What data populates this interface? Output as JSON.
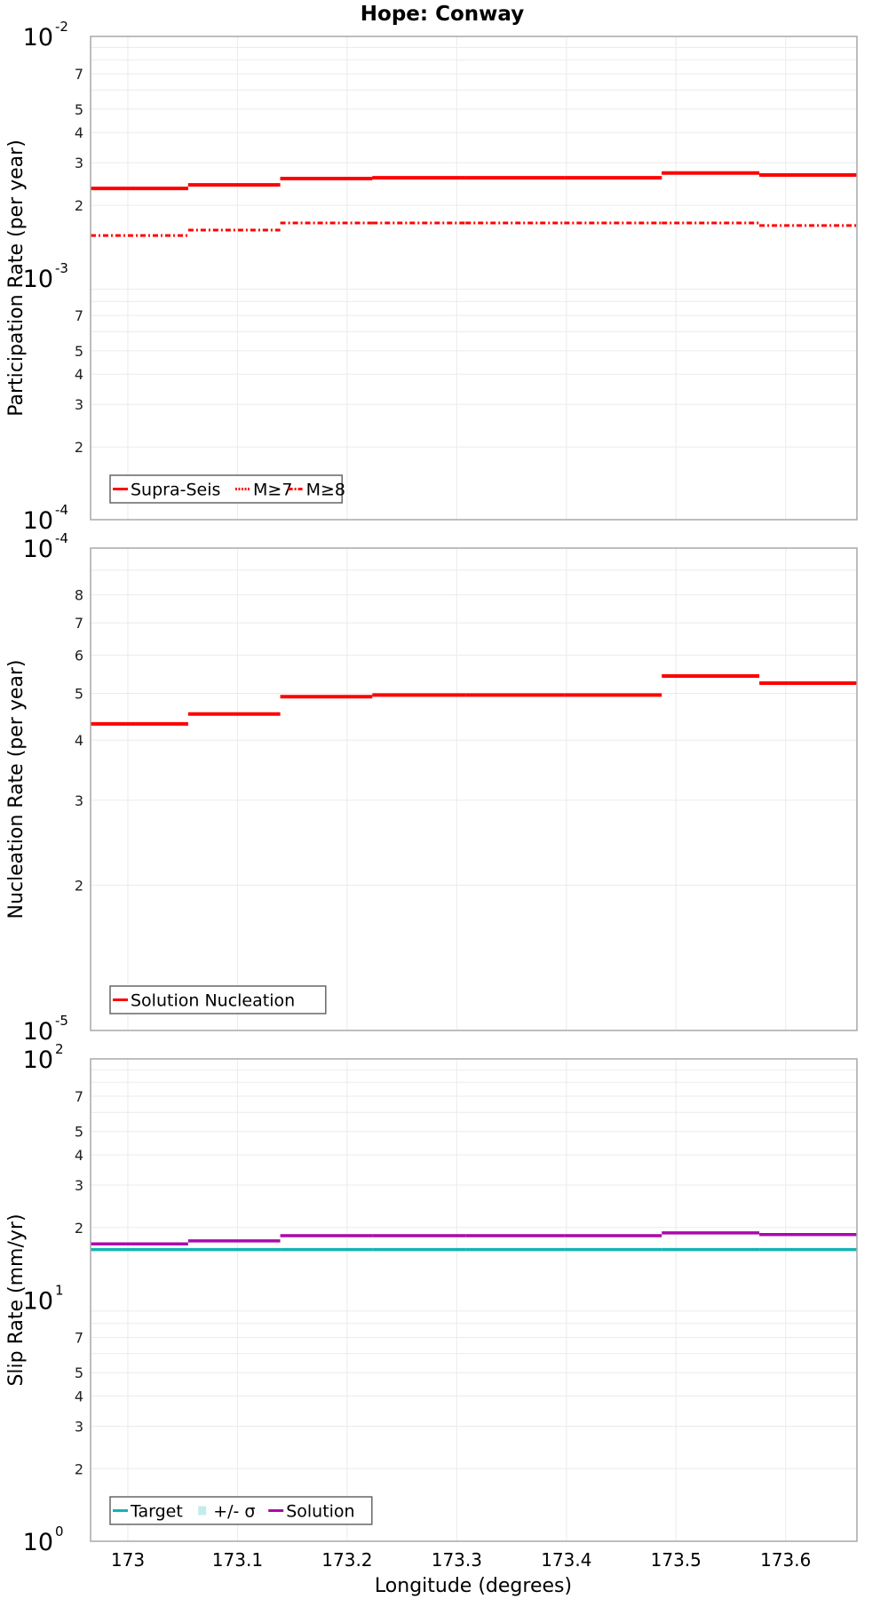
{
  "title": "Hope: Conway",
  "x_axis": {
    "label": "Longitude (degrees)",
    "range": [
      172.966,
      173.665
    ],
    "ticks": [
      173,
      173.1,
      173.2,
      173.3,
      173.4,
      173.5,
      173.6
    ],
    "tick_labels": [
      "173",
      "173.1",
      "173.2",
      "173.3",
      "173.4",
      "173.5",
      "173.6"
    ]
  },
  "colors": {
    "supra_seis": "#ff0000",
    "target": "#13b3b3",
    "sigma": "#c4ecec",
    "solution": "#aa0aaa",
    "grid": "#ebebeb",
    "frame": "#a8a8a8"
  },
  "chart_data": [
    {
      "type": "line",
      "step": true,
      "title": "Hope: Conway",
      "xlabel": "Longitude (degrees)",
      "ylabel": "Participation Rate (per year)",
      "yscale": "log",
      "ylim": [
        0.0001,
        0.01
      ],
      "major_ticks": [
        {
          "base": "10",
          "exp": "-2",
          "value": 0.01
        },
        {
          "base": "10",
          "exp": "-3",
          "value": 0.001
        },
        {
          "base": "10",
          "exp": "-4",
          "value": 0.0001
        }
      ],
      "x_breaks": [
        172.966,
        173.055,
        173.139,
        173.223,
        173.308,
        173.398,
        173.487,
        173.576,
        173.665
      ],
      "series": [
        {
          "name": "Supra-Seis",
          "style": "solid",
          "values": [
            0.00235,
            0.00243,
            0.00258,
            0.0026,
            0.0026,
            0.0026,
            0.00272,
            0.00267
          ]
        },
        {
          "name": "M≥7",
          "style": "dotted",
          "values": [
            0.00235,
            0.00243,
            0.00258,
            0.0026,
            0.0026,
            0.0026,
            0.00272,
            0.00267
          ]
        },
        {
          "name": "M≥8",
          "style": "dashdot",
          "values": [
            0.0015,
            0.00158,
            0.00169,
            0.00169,
            0.00169,
            0.00169,
            0.00169,
            0.00165
          ]
        }
      ],
      "legend": [
        "Supra-Seis",
        "M≥7",
        "M≥8"
      ],
      "legend_position": "lower-left",
      "grid": true
    },
    {
      "type": "line",
      "step": true,
      "xlabel": "Longitude (degrees)",
      "ylabel": "Nucleation Rate (per year)",
      "yscale": "log",
      "ylim": [
        1e-05,
        0.0001
      ],
      "major_ticks": [
        {
          "base": "10",
          "exp": "-4",
          "value": 0.0001
        },
        {
          "base": "10",
          "exp": "-5",
          "value": 1e-05
        }
      ],
      "x_breaks": [
        172.966,
        173.055,
        173.139,
        173.223,
        173.308,
        173.398,
        173.487,
        173.576,
        173.665
      ],
      "series": [
        {
          "name": "Solution Nucleation",
          "style": "solid",
          "values": [
            4.32e-05,
            4.53e-05,
            4.92e-05,
            4.96e-05,
            4.96e-05,
            4.96e-05,
            5.43e-05,
            5.25e-05
          ]
        }
      ],
      "legend": [
        "Solution Nucleation"
      ],
      "legend_position": "lower-left",
      "grid": true
    },
    {
      "type": "line",
      "step": true,
      "xlabel": "Longitude (degrees)",
      "ylabel": "Slip Rate (mm/yr)",
      "yscale": "log",
      "ylim": [
        1,
        100
      ],
      "major_ticks": [
        {
          "base": "10",
          "exp": "2",
          "value": 100
        },
        {
          "base": "10",
          "exp": "1",
          "value": 10
        },
        {
          "base": "10",
          "exp": "0",
          "value": 1
        }
      ],
      "x_breaks": [
        172.966,
        173.055,
        173.139,
        173.223,
        173.308,
        173.398,
        173.487,
        173.576,
        173.665
      ],
      "series": [
        {
          "name": "Target",
          "style": "solid",
          "values": [
            16.2,
            16.2,
            16.2,
            16.2,
            16.2,
            16.2,
            16.2,
            16.2
          ]
        },
        {
          "name": "+/- σ",
          "style": "band",
          "values": [
            16.2,
            16.2,
            16.2,
            16.2,
            16.2,
            16.2,
            16.2,
            16.2
          ]
        },
        {
          "name": "Solution",
          "style": "solid",
          "values": [
            17.1,
            17.6,
            18.5,
            18.5,
            18.5,
            18.5,
            19.0,
            18.7
          ]
        }
      ],
      "legend": [
        "Target",
        "+/- σ",
        "Solution"
      ],
      "legend_position": "lower-left",
      "grid": true
    }
  ]
}
